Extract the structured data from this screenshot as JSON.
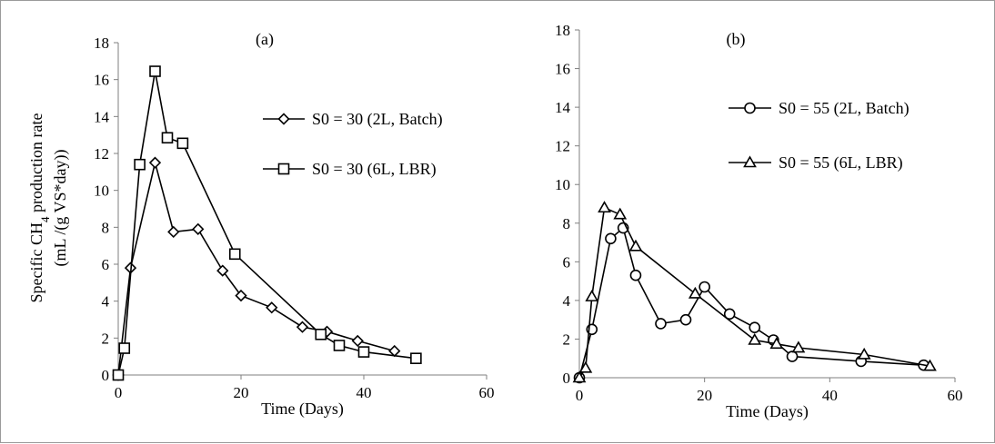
{
  "chart_data": [
    {
      "type": "line",
      "panel_label": "(a)",
      "title": "",
      "xlabel": "Time (Days)",
      "ylabel_line1_prefix": "Specific CH",
      "ylabel_line1_sub": "4",
      "ylabel_line1_suffix": " production rate",
      "ylabel_line2": "(mL /(g VS*day))",
      "xlim": [
        0,
        60
      ],
      "ylim": [
        0,
        18
      ],
      "xticks": [
        "0",
        "20",
        "40",
        "60"
      ],
      "yticks": [
        "0",
        "2",
        "4",
        "6",
        "8",
        "10",
        "12",
        "14",
        "16",
        "18"
      ],
      "legend_position": "right",
      "series": [
        {
          "name": "S0 = 30 (2L, Batch)",
          "marker": "diamond",
          "x": [
            0,
            2,
            6,
            9,
            13,
            17,
            20,
            25,
            30,
            34,
            39,
            45
          ],
          "y": [
            0,
            5.8,
            11.5,
            7.75,
            7.9,
            5.65,
            4.3,
            3.65,
            2.6,
            2.35,
            1.85,
            1.3
          ]
        },
        {
          "name": "S0 = 30 (6L, LBR)",
          "marker": "square",
          "x": [
            0,
            1,
            3.5,
            6,
            8,
            10.5,
            19,
            33,
            36,
            40,
            48.5
          ],
          "y": [
            0,
            1.45,
            11.4,
            16.45,
            12.85,
            12.55,
            6.55,
            2.2,
            1.6,
            1.25,
            0.9
          ]
        }
      ]
    },
    {
      "type": "line",
      "panel_label": "(b)",
      "title": "",
      "xlabel": "Time (Days)",
      "xlim": [
        0,
        60
      ],
      "ylim": [
        0,
        18
      ],
      "xticks": [
        "0",
        "20",
        "40",
        "60"
      ],
      "yticks": [
        "0",
        "2",
        "4",
        "6",
        "8",
        "10",
        "12",
        "14",
        "16",
        "18"
      ],
      "legend_position": "right",
      "series": [
        {
          "name": "S0 = 55 (2L, Batch)",
          "marker": "circle",
          "x": [
            0,
            2,
            5,
            7,
            9,
            13,
            17,
            20,
            24,
            28,
            31,
            34,
            45,
            55
          ],
          "y": [
            0,
            2.5,
            7.2,
            7.75,
            5.3,
            2.8,
            3.0,
            4.7,
            3.3,
            2.6,
            1.95,
            1.1,
            0.85,
            0.65
          ]
        },
        {
          "name": "S0 = 55 (6L, LBR)",
          "marker": "triangle",
          "x": [
            0,
            1,
            2,
            4,
            6.5,
            9,
            18.5,
            28,
            31.5,
            35,
            45.5,
            56
          ],
          "y": [
            0,
            0.5,
            4.2,
            8.8,
            8.45,
            6.8,
            4.35,
            1.95,
            1.75,
            1.55,
            1.2,
            0.6
          ]
        }
      ]
    }
  ]
}
